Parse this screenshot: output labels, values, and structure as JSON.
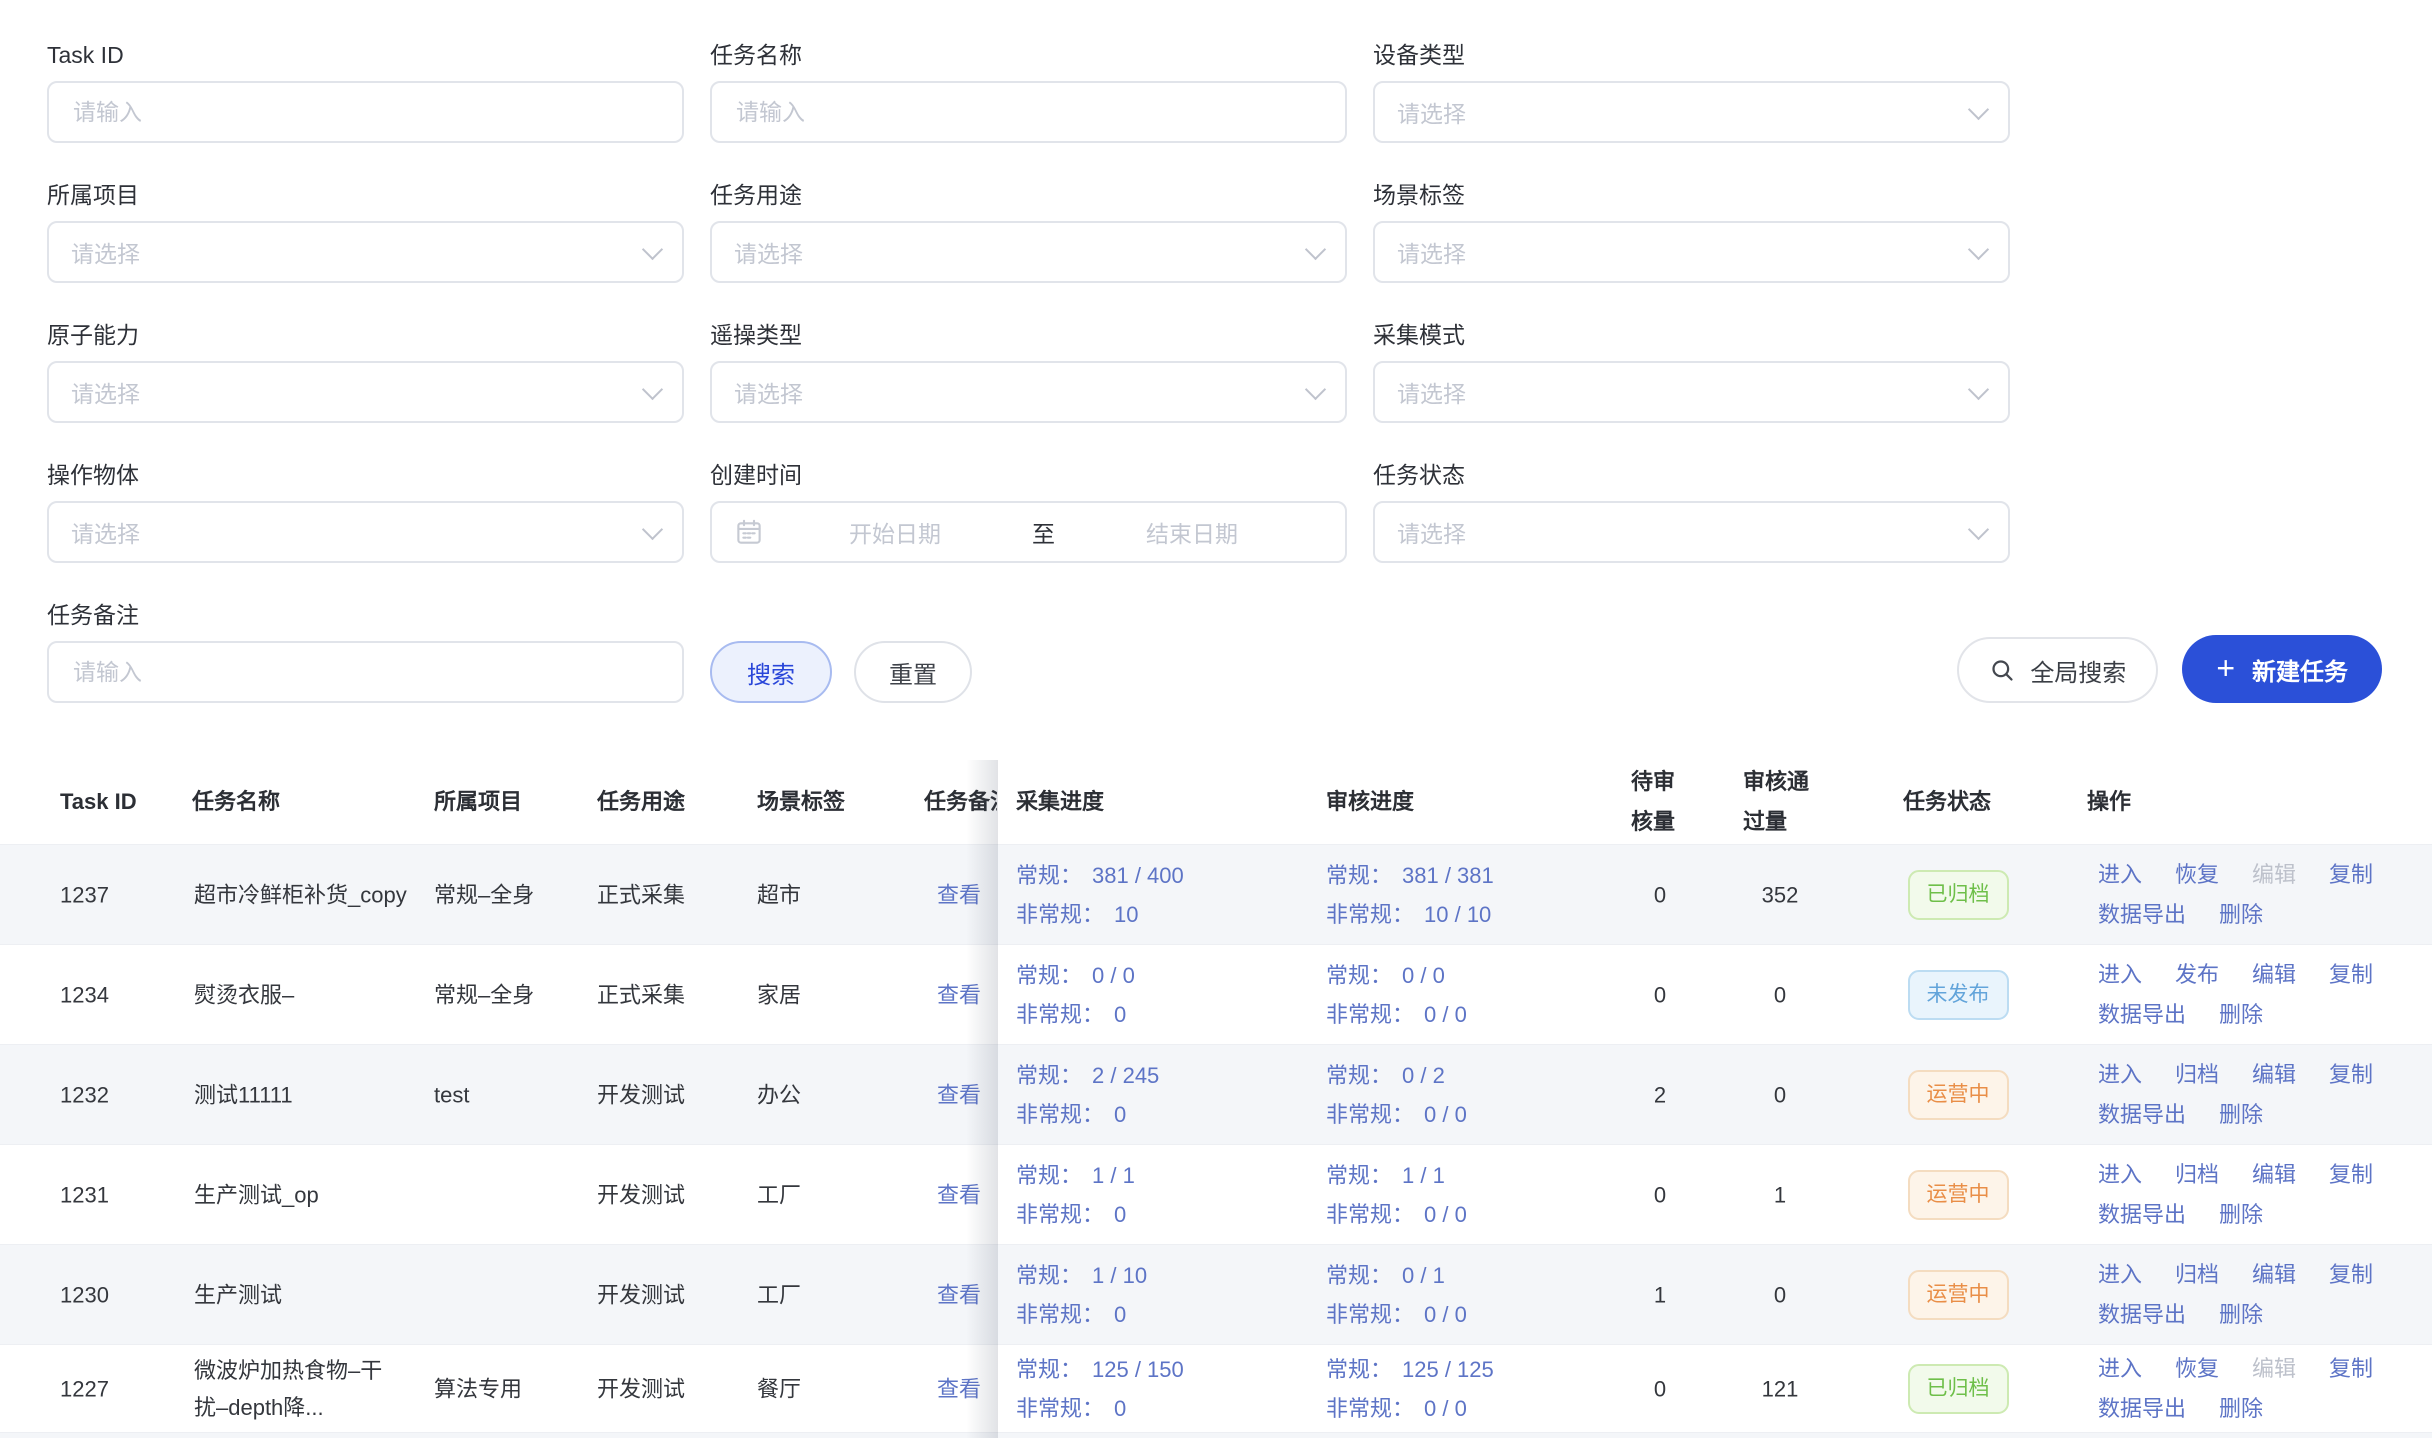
{
  "filters": {
    "items": [
      {
        "label": "Task ID",
        "placeholder": "请输入"
      },
      {
        "label": "任务名称",
        "placeholder": "请输入"
      },
      {
        "label": "设备类型",
        "placeholder": "请选择"
      },
      {
        "label": "所属项目",
        "placeholder": "请选择"
      },
      {
        "label": "任务用途",
        "placeholder": "请选择"
      },
      {
        "label": "场景标签",
        "placeholder": "请选择"
      },
      {
        "label": "原子能力",
        "placeholder": "请选择"
      },
      {
        "label": "遥操类型",
        "placeholder": "请选择"
      },
      {
        "label": "采集模式",
        "placeholder": "请选择"
      },
      {
        "label": "操作物体",
        "placeholder": "请选择"
      },
      {
        "label": "创建时间",
        "start_placeholder": "开始日期",
        "separator": "至",
        "end_placeholder": "结束日期"
      },
      {
        "label": "任务状态",
        "placeholder": "请选择"
      },
      {
        "label": "任务备注",
        "placeholder": "请输入"
      }
    ]
  },
  "toolbar": {
    "search": "搜索",
    "reset": "重置",
    "global_search": "全局搜索",
    "new_task": "新建任务",
    "new_task_icon": "+",
    "search_icon": "magnifier",
    "accent_color": "#2b50d8"
  },
  "table": {
    "link_color": "#5d74c6",
    "status_colors": {
      "archived": "#6ebf49",
      "unpublished": "#62a4da",
      "running": "#e98e47"
    },
    "columns": [
      {
        "key": "task_id",
        "label": "Task ID"
      },
      {
        "key": "name",
        "label": "任务名称"
      },
      {
        "key": "project",
        "label": "所属项目"
      },
      {
        "key": "purpose",
        "label": "任务用途"
      },
      {
        "key": "scene",
        "label": "场景标签"
      },
      {
        "key": "remark",
        "label": "任务备注"
      },
      {
        "key": "collect",
        "label": "采集进度"
      },
      {
        "key": "review",
        "label": "审核进度"
      },
      {
        "key": "pending",
        "label": "待审核量",
        "lines": [
          "待审",
          "核量"
        ]
      },
      {
        "key": "approved",
        "label": "审核通过量",
        "lines": [
          "审核通",
          "过量"
        ]
      },
      {
        "key": "status",
        "label": "任务状态"
      },
      {
        "key": "actions",
        "label": "操作"
      }
    ],
    "remark_link_label": "查看",
    "rows": [
      {
        "task_id": "1237",
        "name": "超市冷鲜柜补货_copy",
        "project": "常规–全身",
        "purpose": "正式采集",
        "scene": "超市",
        "collect": [
          [
            "常规：",
            "381 / 400"
          ],
          [
            "非常规：",
            "10"
          ]
        ],
        "review": [
          [
            "常规：",
            "381 / 381"
          ],
          [
            "非常规：",
            "10 / 10"
          ]
        ],
        "pending": "0",
        "approved": "352",
        "status": {
          "key": "archived",
          "label": "已归档"
        },
        "actions": [
          [
            {
              "key": "enter",
              "label": "进入"
            },
            {
              "key": "restore",
              "label": "恢复"
            },
            {
              "key": "edit",
              "label": "编辑",
              "disabled": true
            },
            {
              "key": "copy",
              "label": "复制"
            }
          ],
          [
            {
              "key": "data-export",
              "label": "数据导出"
            },
            {
              "key": "delete",
              "label": "删除"
            }
          ]
        ]
      },
      {
        "task_id": "1234",
        "name": "熨烫衣服–",
        "project": "常规–全身",
        "purpose": "正式采集",
        "scene": "家居",
        "collect": [
          [
            "常规：",
            "0 / 0"
          ],
          [
            "非常规：",
            "0"
          ]
        ],
        "review": [
          [
            "常规：",
            "0 / 0"
          ],
          [
            "非常规：",
            "0 / 0"
          ]
        ],
        "pending": "0",
        "approved": "0",
        "status": {
          "key": "unpublished",
          "label": "未发布"
        },
        "actions": [
          [
            {
              "key": "enter",
              "label": "进入"
            },
            {
              "key": "publish",
              "label": "发布"
            },
            {
              "key": "edit",
              "label": "编辑"
            },
            {
              "key": "copy",
              "label": "复制"
            }
          ],
          [
            {
              "key": "data-export",
              "label": "数据导出"
            },
            {
              "key": "delete",
              "label": "删除"
            }
          ]
        ]
      },
      {
        "task_id": "1232",
        "name": "测试11111",
        "project": "test",
        "purpose": "开发测试",
        "scene": "办公",
        "collect": [
          [
            "常规：",
            "2 / 245"
          ],
          [
            "非常规：",
            "0"
          ]
        ],
        "review": [
          [
            "常规：",
            "0 / 2"
          ],
          [
            "非常规：",
            "0 / 0"
          ]
        ],
        "pending": "2",
        "approved": "0",
        "status": {
          "key": "running",
          "label": "运营中"
        },
        "actions": [
          [
            {
              "key": "enter",
              "label": "进入"
            },
            {
              "key": "archive",
              "label": "归档"
            },
            {
              "key": "edit",
              "label": "编辑"
            },
            {
              "key": "copy",
              "label": "复制"
            }
          ],
          [
            {
              "key": "data-export",
              "label": "数据导出"
            },
            {
              "key": "delete",
              "label": "删除"
            }
          ]
        ]
      },
      {
        "task_id": "1231",
        "name": "生产测试_op",
        "project": "",
        "purpose": "开发测试",
        "scene": "工厂",
        "collect": [
          [
            "常规：",
            "1 / 1"
          ],
          [
            "非常规：",
            "0"
          ]
        ],
        "review": [
          [
            "常规：",
            "1 / 1"
          ],
          [
            "非常规：",
            "0 / 0"
          ]
        ],
        "pending": "0",
        "approved": "1",
        "status": {
          "key": "running",
          "label": "运营中"
        },
        "actions": [
          [
            {
              "key": "enter",
              "label": "进入"
            },
            {
              "key": "archive",
              "label": "归档"
            },
            {
              "key": "edit",
              "label": "编辑"
            },
            {
              "key": "copy",
              "label": "复制"
            }
          ],
          [
            {
              "key": "data-export",
              "label": "数据导出"
            },
            {
              "key": "delete",
              "label": "删除"
            }
          ]
        ]
      },
      {
        "task_id": "1230",
        "name": "生产测试",
        "project": "",
        "purpose": "开发测试",
        "scene": "工厂",
        "collect": [
          [
            "常规：",
            "1 / 10"
          ],
          [
            "非常规：",
            "0"
          ]
        ],
        "review": [
          [
            "常规：",
            "0 / 1"
          ],
          [
            "非常规：",
            "0 / 0"
          ]
        ],
        "pending": "1",
        "approved": "0",
        "status": {
          "key": "running",
          "label": "运营中"
        },
        "actions": [
          [
            {
              "key": "enter",
              "label": "进入"
            },
            {
              "key": "archive",
              "label": "归档"
            },
            {
              "key": "edit",
              "label": "编辑"
            },
            {
              "key": "copy",
              "label": "复制"
            }
          ],
          [
            {
              "key": "data-export",
              "label": "数据导出"
            },
            {
              "key": "delete",
              "label": "删除"
            }
          ]
        ]
      },
      {
        "task_id": "1227",
        "name": "微波炉加热食物–干扰–depth降...",
        "project": "算法专用",
        "purpose": "开发测试",
        "scene": "餐厅",
        "collect": [
          [
            "常规：",
            "125 / 150"
          ],
          [
            "非常规：",
            "0"
          ]
        ],
        "review": [
          [
            "常规：",
            "125 / 125"
          ],
          [
            "非常规：",
            "0 / 0"
          ]
        ],
        "pending": "0",
        "approved": "121",
        "status": {
          "key": "archived",
          "label": "已归档"
        },
        "actions": [
          [
            {
              "key": "enter",
              "label": "进入"
            },
            {
              "key": "restore",
              "label": "恢复"
            },
            {
              "key": "edit",
              "label": "编辑",
              "disabled": true
            },
            {
              "key": "copy",
              "label": "复制"
            }
          ],
          [
            {
              "key": "data-export",
              "label": "数据导出"
            },
            {
              "key": "delete",
              "label": "删除"
            }
          ]
        ]
      }
    ]
  }
}
